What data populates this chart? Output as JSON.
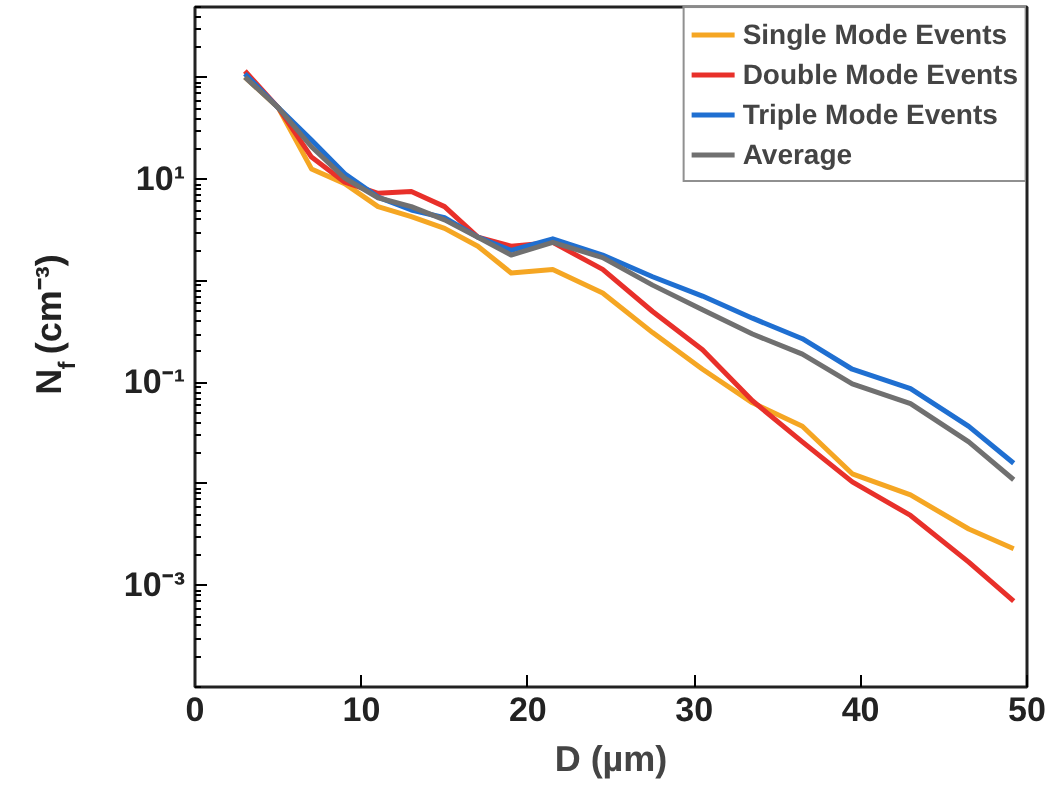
{
  "chart_data": {
    "type": "line",
    "xlabel": "D (µm)",
    "ylabel": "N$_{f}$ (cm⁻³)",
    "log": "y",
    "xlim": [
      0,
      50
    ],
    "xticks": [
      0,
      10,
      20,
      30,
      40,
      50
    ],
    "ylim": [
      0.0001,
      500
    ],
    "yticks": [
      {
        "value": 100,
        "label": null
      },
      {
        "value": 10,
        "label": "10¹"
      },
      {
        "value": 1,
        "label": null
      },
      {
        "value": 0.1,
        "label": "10⁻¹"
      },
      {
        "value": 0.01,
        "label": null
      },
      {
        "value": 0.001,
        "label": "10⁻³"
      }
    ],
    "x": [
      3,
      5,
      7,
      9,
      11,
      13,
      15,
      17,
      19,
      21.5,
      24.5,
      27.5,
      30.5,
      33.5,
      36.5,
      39.5,
      43,
      46.5,
      49.2
    ],
    "series": [
      {
        "name": "Single Mode Events",
        "color": "#f5a623",
        "values": [
          102,
          51,
          12.7,
          9.1,
          5.4,
          4.3,
          3.3,
          2.2,
          1.2,
          1.3,
          0.76,
          0.31,
          0.135,
          0.063,
          0.037,
          0.0126,
          0.0078,
          0.0036,
          0.0023
        ]
      },
      {
        "name": "Double Mode Events",
        "color": "#e8302a",
        "values": [
          117,
          51,
          16.6,
          9.4,
          7.3,
          7.6,
          5.4,
          2.7,
          2.2,
          2.4,
          1.3,
          0.5,
          0.21,
          0.066,
          0.026,
          0.0105,
          0.0049,
          0.0017,
          0.0007
        ]
      },
      {
        "name": "Triple Mode Events",
        "color": "#1f6fd1",
        "values": [
          110,
          51,
          24.5,
          11.4,
          6.7,
          5.0,
          4.2,
          2.7,
          2.0,
          2.6,
          1.8,
          1.1,
          0.71,
          0.43,
          0.27,
          0.135,
          0.087,
          0.037,
          0.016
        ]
      },
      {
        "name": "Average",
        "color": "#707070",
        "values": [
          102,
          51,
          21,
          10.3,
          6.6,
          5.4,
          4.0,
          2.7,
          1.8,
          2.4,
          1.7,
          0.91,
          0.52,
          0.3,
          0.19,
          0.097,
          0.062,
          0.026,
          0.011
        ]
      }
    ],
    "legend": "top right",
    "grid": false,
    "marker": "none",
    "line_style": "solid"
  }
}
